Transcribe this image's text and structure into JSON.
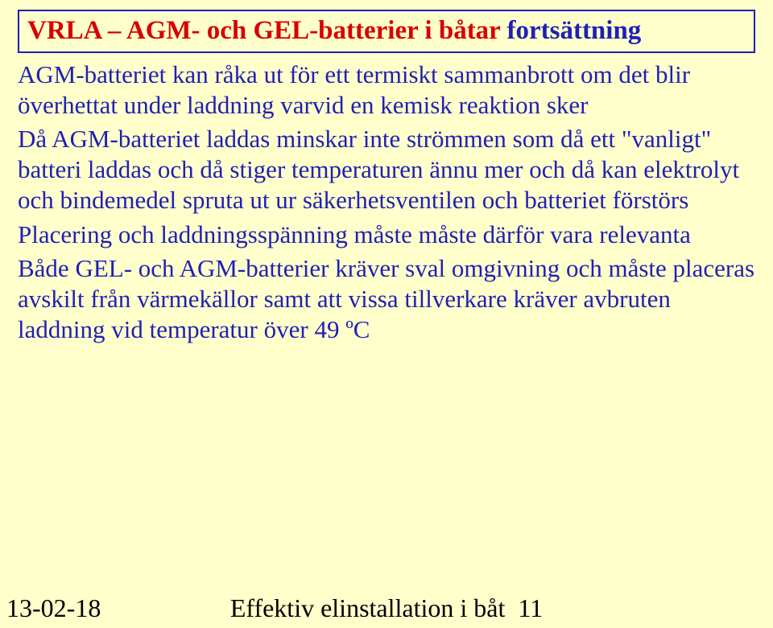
{
  "colors": {
    "background": "#ffffcc",
    "title_red": "#d80000",
    "title_blue": "#1f1fb5",
    "body_text": "#1f1fb5",
    "footer_text": "#000000",
    "box_border": "#1f1fb5"
  },
  "typography": {
    "font_family": "Times New Roman",
    "title_fontsize_pt": 25,
    "body_fontsize_pt": 23,
    "footer_fontsize_pt": 24,
    "title_weight": "bold",
    "body_weight": "normal"
  },
  "title": {
    "main": "VRLA – AGM- och GEL-batterier i båtar ",
    "continuation": "fortsättning"
  },
  "paragraphs": [
    "AGM-batteriet kan råka ut för ett termiskt sammanbrott om det blir överhettat under laddning varvid en kemisk reaktion sker",
    "Då AGM-batteriet laddas minskar inte strömmen som då ett \"vanligt\" batteri laddas och då stiger temperaturen ännu mer och då kan elektrolyt och bindemedel spruta ut ur säkerhetsventilen och batteriet förstörs",
    "Placering och laddningsspänning måste måste därför vara relevanta",
    "Både GEL- och AGM-batterier kräver sval omgivning och måste placeras avskilt från värmekällor samt att vissa tillverkare kräver avbruten laddning vid temperatur över 49 ºC"
  ],
  "footer": {
    "date": "13-02-18",
    "center_text": "Effektiv elinstallation i båt",
    "page_number": "11"
  }
}
